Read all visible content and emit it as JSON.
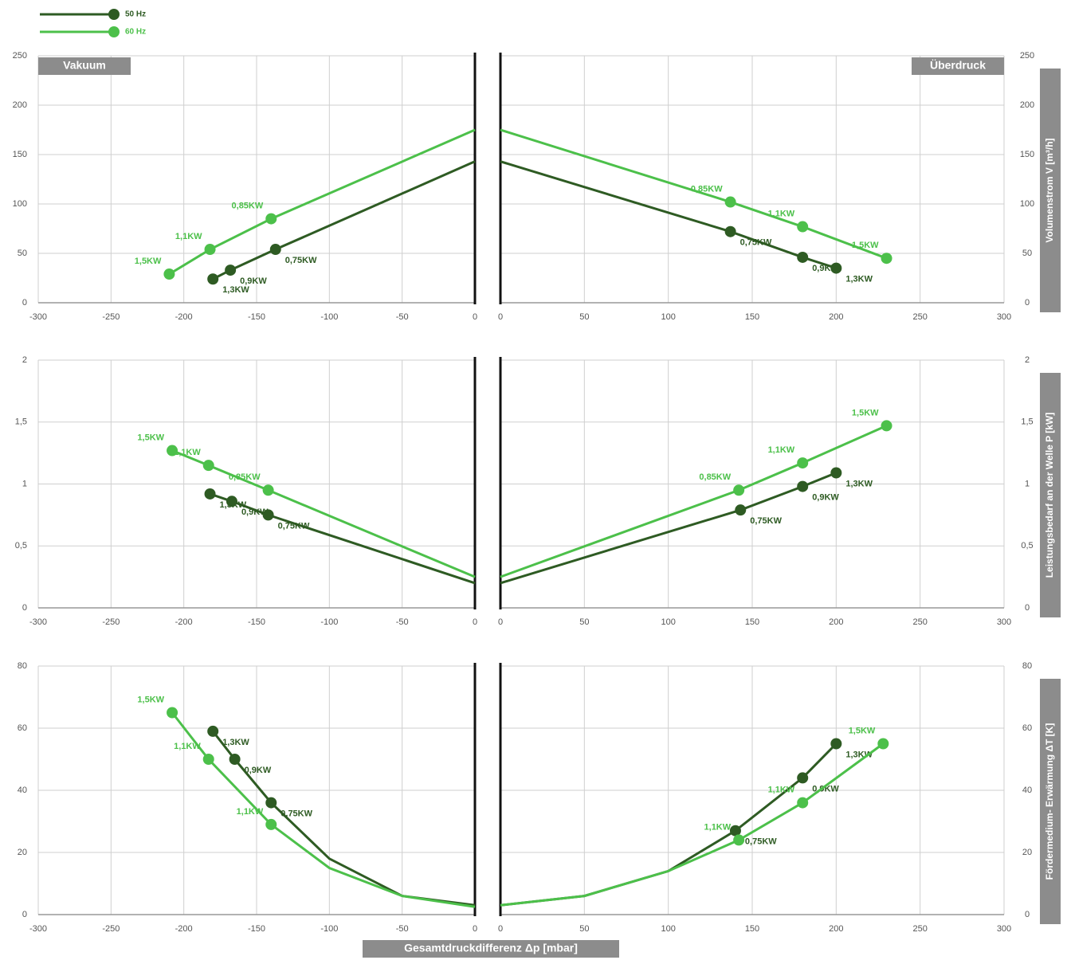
{
  "chart_data": [
    {
      "type": "line",
      "title": "Vakuum",
      "xlim": [
        -300,
        0
      ],
      "ylim": [
        0,
        250
      ],
      "xticks": [
        -300,
        -250,
        -200,
        -150,
        -100,
        -50,
        0
      ],
      "yticks": [
        0,
        50,
        100,
        150,
        200,
        250
      ],
      "grid": true,
      "series": [
        {
          "name": "50 Hz",
          "color": "#2e5b23",
          "x": [
            -180,
            -168,
            -137,
            0
          ],
          "values": [
            24,
            33,
            54,
            143
          ],
          "point_labels": [
            "1,3KW",
            "0,9KW",
            "0,75KW",
            null
          ]
        },
        {
          "name": "60 Hz",
          "color": "#4cc04a",
          "x": [
            -210,
            -182,
            -140,
            0
          ],
          "values": [
            29,
            54,
            85,
            175
          ],
          "point_labels": [
            "1,5KW",
            "1,1KW",
            "0,85KW",
            null
          ]
        }
      ]
    },
    {
      "type": "line",
      "title": "Überdruck",
      "y_label": "Volumenstrom V [m³/h]",
      "xlim": [
        0,
        300
      ],
      "ylim": [
        0,
        250
      ],
      "xticks": [
        0,
        50,
        100,
        150,
        200,
        250,
        300
      ],
      "yticks": [
        0,
        50,
        100,
        150,
        200,
        250
      ],
      "grid": true,
      "series": [
        {
          "color": "#2e5b23",
          "x": [
            0,
            137,
            180,
            200
          ],
          "values": [
            143,
            72,
            46,
            35
          ],
          "point_labels": [
            null,
            "0,75KW",
            "0,9KW",
            "1,3KW"
          ]
        },
        {
          "color": "#4cc04a",
          "x": [
            0,
            137,
            180,
            230
          ],
          "values": [
            175,
            102,
            77,
            45
          ],
          "point_labels": [
            null,
            "0,85KW",
            "1,1KW",
            "1,5KW"
          ]
        }
      ]
    },
    {
      "type": "line",
      "xlim": [
        -300,
        0
      ],
      "ylim": [
        0,
        2
      ],
      "xticks": [
        -300,
        -250,
        -200,
        -150,
        -100,
        -50,
        0
      ],
      "yticks": [
        0,
        {
          "value": 0.5,
          "label": "0,5"
        },
        1,
        {
          "value": 1.5,
          "label": "1,5"
        },
        2
      ],
      "grid": true,
      "series": [
        {
          "color": "#2e5b23",
          "x": [
            -182,
            -167,
            -142,
            0
          ],
          "values": [
            0.92,
            0.86,
            0.75,
            0.2
          ],
          "point_labels": [
            "1,3KW",
            "0,9KW",
            "0,75KW",
            null
          ]
        },
        {
          "color": "#4cc04a",
          "x": [
            -208,
            -183,
            -142,
            0
          ],
          "values": [
            1.27,
            1.15,
            0.95,
            0.25
          ],
          "point_labels": [
            "1,5KW",
            "1,1KW",
            "0,85KW",
            null
          ]
        }
      ]
    },
    {
      "type": "line",
      "y_label": "Leistungsbedarf an der Welle P [kW]",
      "xlim": [
        0,
        300
      ],
      "ylim": [
        0,
        2
      ],
      "xticks": [
        0,
        50,
        100,
        150,
        200,
        250,
        300
      ],
      "yticks": [
        0,
        {
          "value": 0.5,
          "label": "0,5"
        },
        1,
        {
          "value": 1.5,
          "label": "1,5"
        },
        2
      ],
      "grid": true,
      "series": [
        {
          "color": "#2e5b23",
          "x": [
            0,
            143,
            180,
            200
          ],
          "values": [
            0.2,
            0.79,
            0.98,
            1.09
          ],
          "point_labels": [
            null,
            "0,75KW",
            "0,9KW",
            "1,3KW"
          ]
        },
        {
          "color": "#4cc04a",
          "x": [
            0,
            142,
            180,
            230
          ],
          "values": [
            0.25,
            0.95,
            1.17,
            1.47
          ],
          "point_labels": [
            null,
            "0,85KW",
            "1,1KW",
            "1,5KW"
          ]
        }
      ]
    },
    {
      "type": "line",
      "xlim": [
        -300,
        0
      ],
      "ylim": [
        0,
        80
      ],
      "xticks": [
        -300,
        -250,
        -200,
        -150,
        -100,
        -50,
        0
      ],
      "yticks": [
        0,
        20,
        40,
        60,
        80
      ],
      "grid": true,
      "series": [
        {
          "color": "#2e5b23",
          "x": [
            -180,
            -165,
            -140,
            -100,
            -50,
            0
          ],
          "values": [
            59,
            50,
            36,
            18,
            6,
            3
          ],
          "point_labels": [
            "1,3KW",
            "0,9KW",
            "0,75KW",
            null,
            null,
            null
          ]
        },
        {
          "color": "#4cc04a",
          "x": [
            -208,
            -183,
            -140,
            -100,
            -50,
            0
          ],
          "values": [
            65,
            50,
            29,
            15,
            6,
            2.5
          ],
          "point_labels": [
            "1,5KW",
            "1,1KW",
            "1,1KW",
            null,
            null,
            null
          ]
        }
      ]
    },
    {
      "type": "line",
      "y_label": "Fördermedium- Erwärmung ΔT [K]",
      "x_label": "Gesamtdruckdifferenz Δp [mbar]",
      "xlim": [
        0,
        300
      ],
      "ylim": [
        0,
        80
      ],
      "xticks": [
        0,
        50,
        100,
        150,
        200,
        250,
        300
      ],
      "yticks": [
        0,
        20,
        40,
        60,
        80
      ],
      "grid": true,
      "series": [
        {
          "color": "#2e5b23",
          "x": [
            0,
            50,
            100,
            140,
            180,
            200
          ],
          "values": [
            3,
            6,
            14,
            27,
            44,
            55
          ],
          "point_labels": [
            null,
            null,
            null,
            "0,75KW",
            "0,9KW",
            "1,3KW"
          ]
        },
        {
          "color": "#4cc04a",
          "x": [
            0,
            50,
            100,
            142,
            180,
            228
          ],
          "values": [
            3,
            6,
            14,
            24,
            36,
            55
          ],
          "point_labels": [
            null,
            null,
            null,
            "1,1KW",
            "1,1KW",
            "1,5KW"
          ]
        }
      ]
    }
  ]
}
